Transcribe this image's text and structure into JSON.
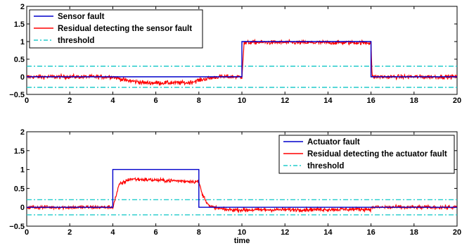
{
  "chart_data": [
    {
      "type": "line",
      "xlabel": "",
      "ylabel": "",
      "xlim": [
        0,
        20
      ],
      "ylim": [
        -0.5,
        2
      ],
      "xticks": [
        "0",
        "2",
        "4",
        "6",
        "8",
        "10",
        "12",
        "14",
        "16",
        "18",
        "20"
      ],
      "yticks": [
        "−0.5",
        "0",
        "0.5",
        "1",
        "1.5",
        "2"
      ],
      "grid": false,
      "legend": "top-left",
      "series": [
        {
          "name": "Sensor fault",
          "color": "#0000cc",
          "style": "solid",
          "x": [
            0,
            4,
            4,
            8,
            8,
            10,
            10,
            16,
            16,
            20
          ],
          "y": [
            0,
            0,
            0,
            0,
            0,
            0,
            1,
            1,
            0,
            0
          ]
        },
        {
          "name": "Residual detecting the sensor fault",
          "color": "#ff0000",
          "style": "noisy",
          "noise": 0.03,
          "x": [
            0,
            4,
            4.6,
            5.5,
            7.5,
            8.3,
            8.9,
            10,
            10.1,
            10.5,
            13,
            16,
            16.05,
            20
          ],
          "y": [
            0,
            0,
            -0.1,
            -0.17,
            -0.17,
            -0.06,
            0,
            0,
            0.96,
            0.98,
            0.97,
            0.97,
            0,
            0
          ]
        },
        {
          "name": "threshold",
          "color": "#22cccc",
          "style": "dashdot",
          "x": [
            0,
            20
          ],
          "y": [
            0.3,
            0.3
          ]
        },
        {
          "name": "",
          "color": "#22cccc",
          "style": "dashdot",
          "x": [
            0,
            20
          ],
          "y": [
            -0.3,
            -0.3
          ]
        }
      ]
    },
    {
      "type": "line",
      "xlabel": "time",
      "ylabel": "",
      "xlim": [
        0,
        20
      ],
      "ylim": [
        -0.5,
        2
      ],
      "xticks": [
        "0",
        "2",
        "4",
        "6",
        "8",
        "10",
        "12",
        "14",
        "16",
        "18",
        "20"
      ],
      "yticks": [
        "−0.5",
        "0",
        "0.5",
        "1",
        "1.5",
        "2"
      ],
      "grid": false,
      "legend": "top-right",
      "series": [
        {
          "name": "Actuator fault",
          "color": "#0000cc",
          "style": "solid",
          "x": [
            0,
            4,
            4,
            8,
            8,
            20
          ],
          "y": [
            0,
            0,
            1,
            1,
            0,
            0
          ]
        },
        {
          "name": "Residual detecting the actuator fault",
          "color": "#ff0000",
          "style": "noisy",
          "noise": 0.025,
          "x": [
            0,
            4,
            4.3,
            4.8,
            6,
            8,
            8.15,
            8.5,
            9.2,
            10,
            13,
            16,
            16.05,
            20
          ],
          "y": [
            0,
            0,
            0.6,
            0.75,
            0.72,
            0.68,
            0.35,
            0.02,
            -0.06,
            -0.07,
            -0.06,
            -0.05,
            0,
            0
          ]
        },
        {
          "name": "threshold",
          "color": "#22cccc",
          "style": "dashdot",
          "x": [
            0,
            20
          ],
          "y": [
            0.2,
            0.2
          ]
        },
        {
          "name": "",
          "color": "#22cccc",
          "style": "dashdot",
          "x": [
            0,
            20
          ],
          "y": [
            -0.2,
            -0.2
          ]
        }
      ]
    }
  ]
}
